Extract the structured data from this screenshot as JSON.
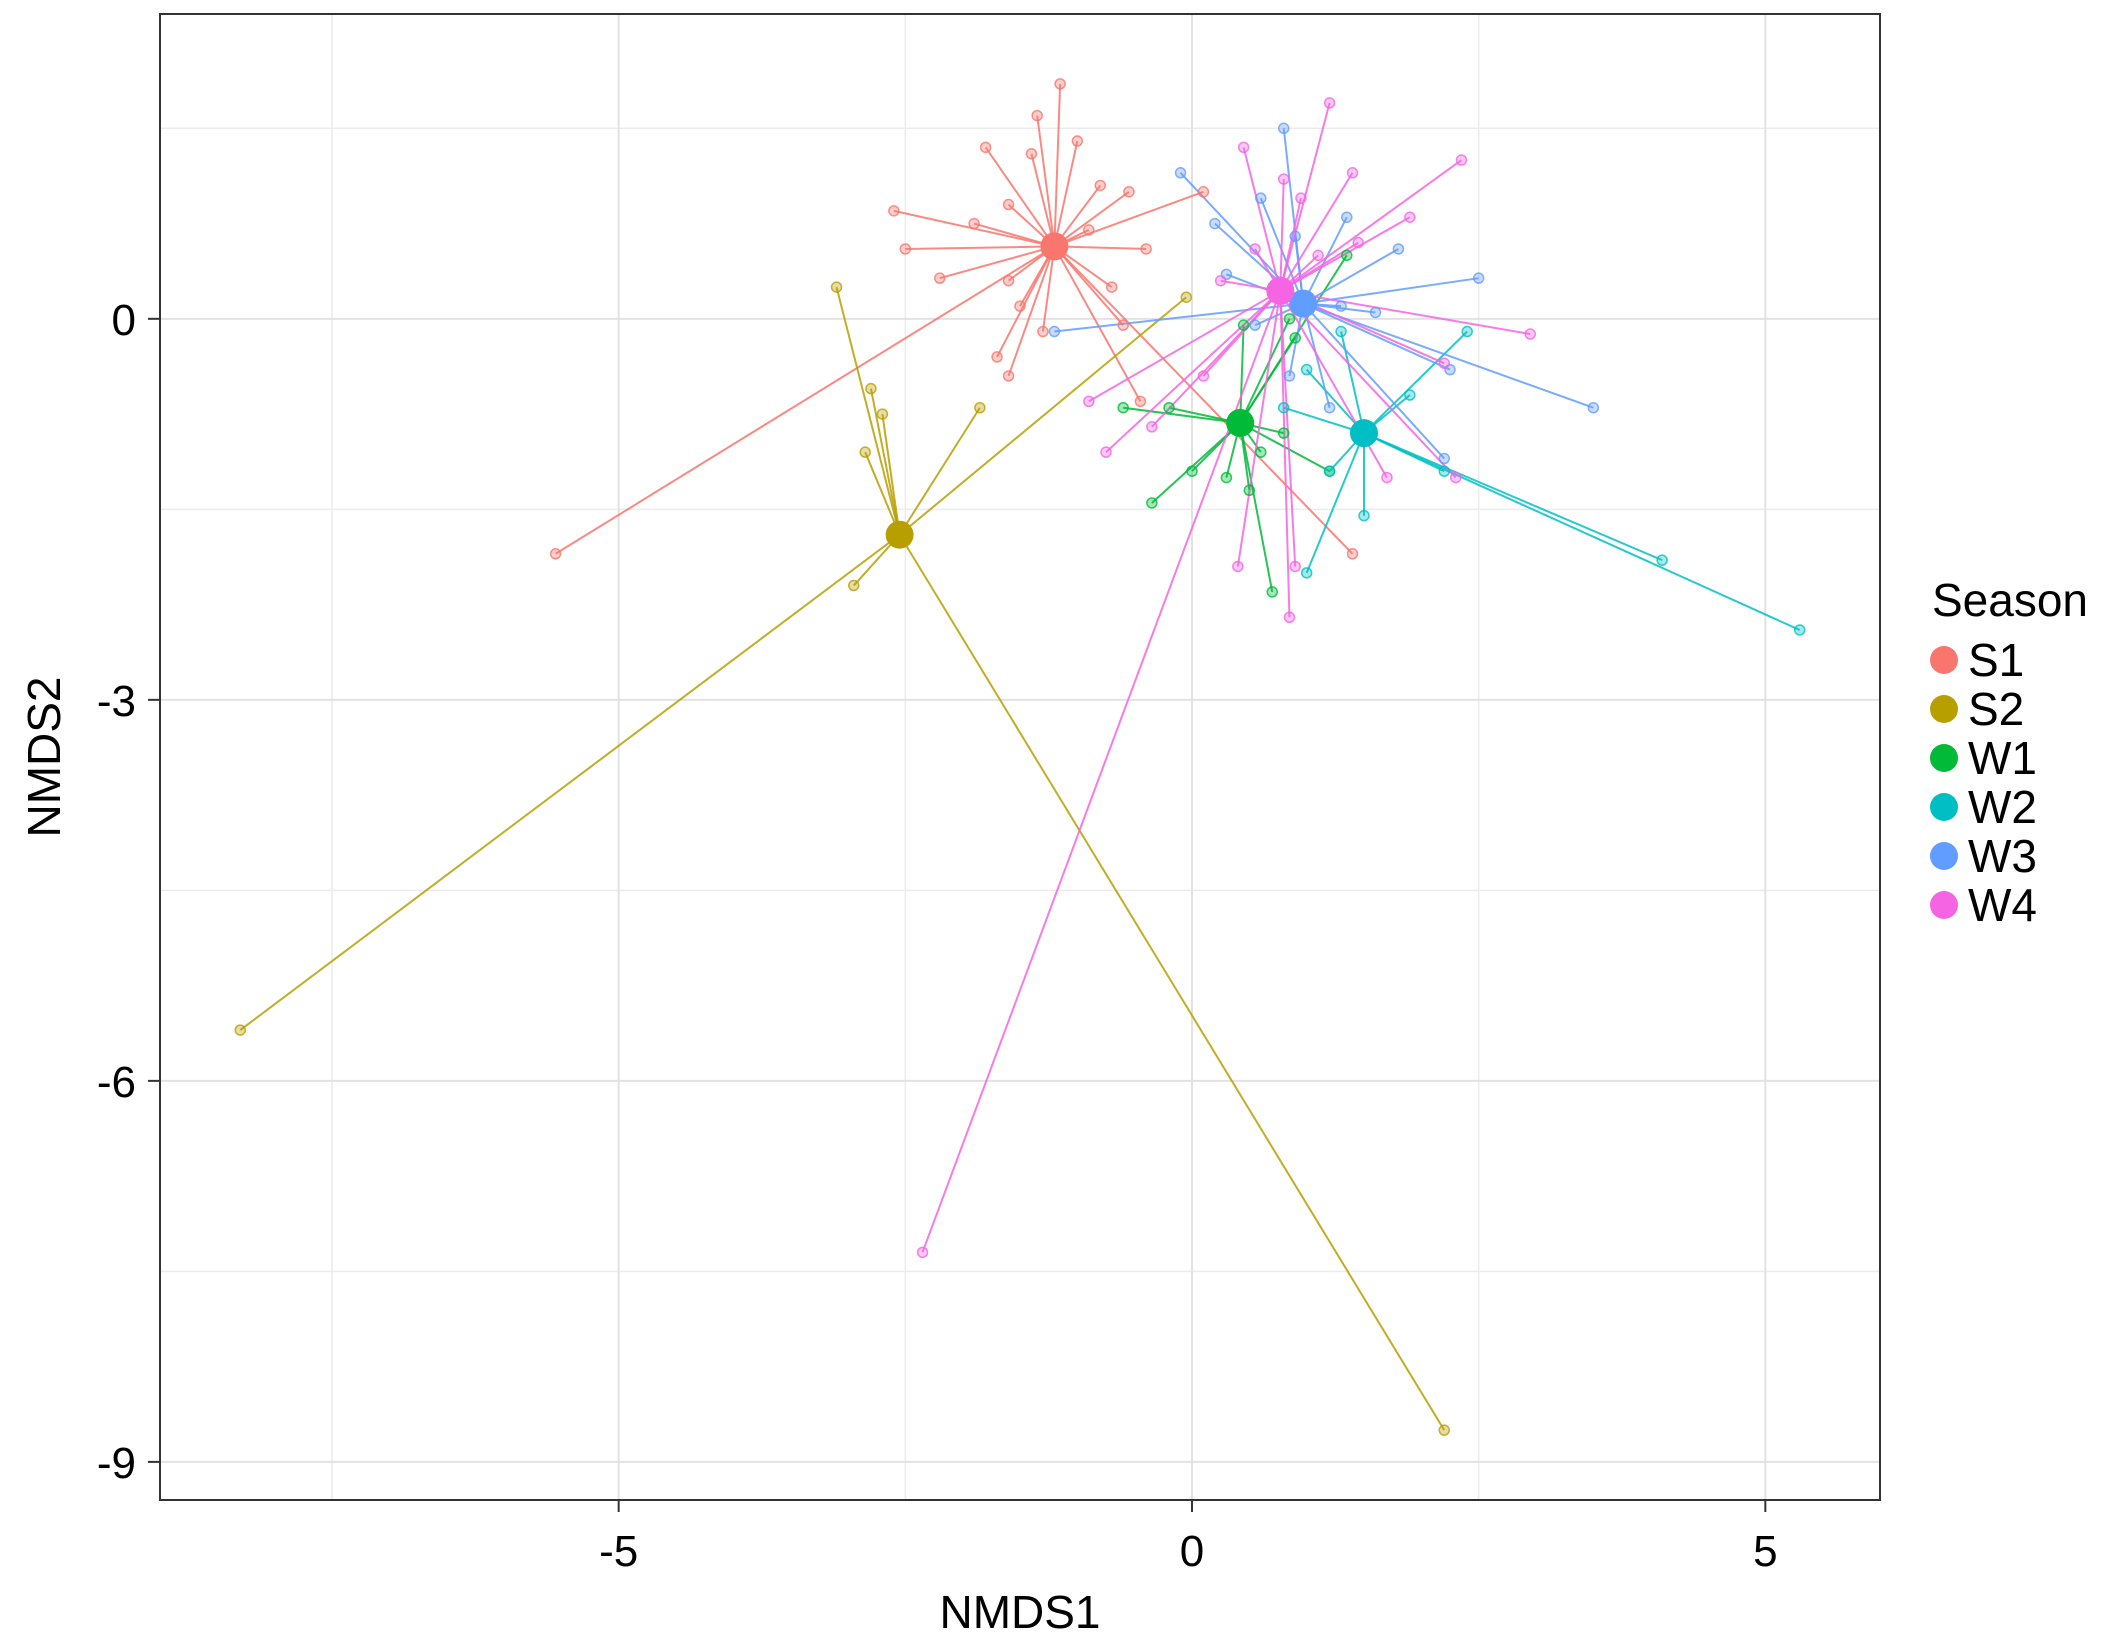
{
  "chart_data": {
    "type": "scatter",
    "subtype": "nmds-spider-plot",
    "xlabel": "NMDS1",
    "ylabel": "NMDS2",
    "xlim": [
      -9,
      6
    ],
    "ylim": [
      -9.3,
      2.4
    ],
    "xticks": [
      -5,
      0,
      5
    ],
    "yticks": [
      0,
      -3,
      -6,
      -9
    ],
    "xminor": [
      -7.5,
      -2.5,
      2.5
    ],
    "yminor": [
      1.5,
      -1.5,
      -4.5,
      -7.5
    ],
    "grid": true,
    "legend": {
      "title": "Season",
      "position": "right",
      "entries": [
        "S1",
        "S2",
        "W1",
        "W2",
        "W3",
        "W4"
      ]
    },
    "series": [
      {
        "name": "S1",
        "color": "#F8766D",
        "centroid": [
          -1.2,
          0.57
        ],
        "points": [
          [
            -1.15,
            1.85
          ],
          [
            -1.35,
            1.6
          ],
          [
            -1.8,
            1.35
          ],
          [
            -1.4,
            1.3
          ],
          [
            -1.0,
            1.4
          ],
          [
            -0.8,
            1.05
          ],
          [
            -0.55,
            1.0
          ],
          [
            0.1,
            1.0
          ],
          [
            -2.6,
            0.85
          ],
          [
            -1.6,
            0.9
          ],
          [
            -1.9,
            0.75
          ],
          [
            -0.4,
            0.55
          ],
          [
            -2.5,
            0.55
          ],
          [
            -0.9,
            0.7
          ],
          [
            -2.2,
            0.32
          ],
          [
            -1.6,
            0.3
          ],
          [
            -0.7,
            0.25
          ],
          [
            -1.5,
            0.1
          ],
          [
            -1.3,
            -0.1
          ],
          [
            -1.7,
            -0.3
          ],
          [
            -1.6,
            -0.45
          ],
          [
            -0.6,
            -0.05
          ],
          [
            -0.45,
            -0.65
          ],
          [
            1.4,
            -1.85
          ],
          [
            -5.55,
            -1.85
          ]
        ]
      },
      {
        "name": "S2",
        "color": "#B79F00",
        "centroid": [
          -2.55,
          -1.7
        ],
        "points": [
          [
            -3.1,
            0.25
          ],
          [
            -2.8,
            -0.55
          ],
          [
            -2.7,
            -0.75
          ],
          [
            -2.85,
            -1.05
          ],
          [
            -1.85,
            -0.7
          ],
          [
            -0.05,
            0.17
          ],
          [
            -2.95,
            -2.1
          ],
          [
            -8.3,
            -5.6
          ],
          [
            2.2,
            -8.75
          ]
        ]
      },
      {
        "name": "W1",
        "color": "#00BA38",
        "centroid": [
          0.42,
          -0.82
        ],
        "points": [
          [
            -0.2,
            -0.7
          ],
          [
            -0.6,
            -0.7
          ],
          [
            -0.35,
            -1.45
          ],
          [
            0.0,
            -1.2
          ],
          [
            0.3,
            -1.25
          ],
          [
            0.6,
            -1.05
          ],
          [
            0.8,
            -0.9
          ],
          [
            1.2,
            -1.2
          ],
          [
            0.45,
            -0.05
          ],
          [
            0.85,
            0.0
          ],
          [
            1.35,
            0.5
          ],
          [
            0.9,
            -0.15
          ],
          [
            0.7,
            -2.15
          ],
          [
            0.5,
            -1.35
          ]
        ]
      },
      {
        "name": "W2",
        "color": "#00BFC4",
        "centroid": [
          1.5,
          -0.9
        ],
        "points": [
          [
            2.4,
            -0.1
          ],
          [
            1.9,
            -0.6
          ],
          [
            1.5,
            -1.55
          ],
          [
            1.0,
            -2.0
          ],
          [
            1.3,
            -0.1
          ],
          [
            1.0,
            -0.4
          ],
          [
            0.8,
            -0.7
          ],
          [
            2.2,
            -1.2
          ],
          [
            4.1,
            -1.9
          ],
          [
            5.3,
            -2.45
          ],
          [
            1.2,
            -1.2
          ]
        ]
      },
      {
        "name": "W3",
        "color": "#619CFF",
        "centroid": [
          0.97,
          0.12
        ],
        "points": [
          [
            -0.1,
            1.15
          ],
          [
            0.2,
            0.75
          ],
          [
            0.6,
            0.95
          ],
          [
            0.8,
            1.5
          ],
          [
            1.35,
            0.8
          ],
          [
            1.8,
            0.55
          ],
          [
            2.5,
            0.32
          ],
          [
            3.5,
            -0.7
          ],
          [
            2.25,
            -0.4
          ],
          [
            1.2,
            -0.7
          ],
          [
            0.85,
            -0.45
          ],
          [
            0.55,
            -0.05
          ],
          [
            0.3,
            0.35
          ],
          [
            -1.2,
            -0.1
          ],
          [
            1.3,
            0.1
          ],
          [
            0.9,
            0.65
          ],
          [
            2.2,
            -1.1
          ],
          [
            1.6,
            0.05
          ]
        ]
      },
      {
        "name": "W4",
        "color": "#F564E3",
        "centroid": [
          0.77,
          0.22
        ],
        "points": [
          [
            0.45,
            1.35
          ],
          [
            0.8,
            1.1
          ],
          [
            1.2,
            1.7
          ],
          [
            1.4,
            1.15
          ],
          [
            2.35,
            1.25
          ],
          [
            1.45,
            0.6
          ],
          [
            1.9,
            0.8
          ],
          [
            2.95,
            -0.12
          ],
          [
            2.2,
            -0.35
          ],
          [
            1.7,
            -1.25
          ],
          [
            0.9,
            -1.95
          ],
          [
            0.85,
            -2.35
          ],
          [
            0.1,
            -0.45
          ],
          [
            -0.35,
            -0.85
          ],
          [
            -0.75,
            -1.05
          ],
          [
            -0.9,
            -0.65
          ],
          [
            0.25,
            0.3
          ],
          [
            0.55,
            0.55
          ],
          [
            0.95,
            0.95
          ],
          [
            1.1,
            0.5
          ],
          [
            -2.35,
            -7.35
          ],
          [
            0.4,
            -1.95
          ],
          [
            2.3,
            -1.25
          ]
        ]
      }
    ]
  }
}
